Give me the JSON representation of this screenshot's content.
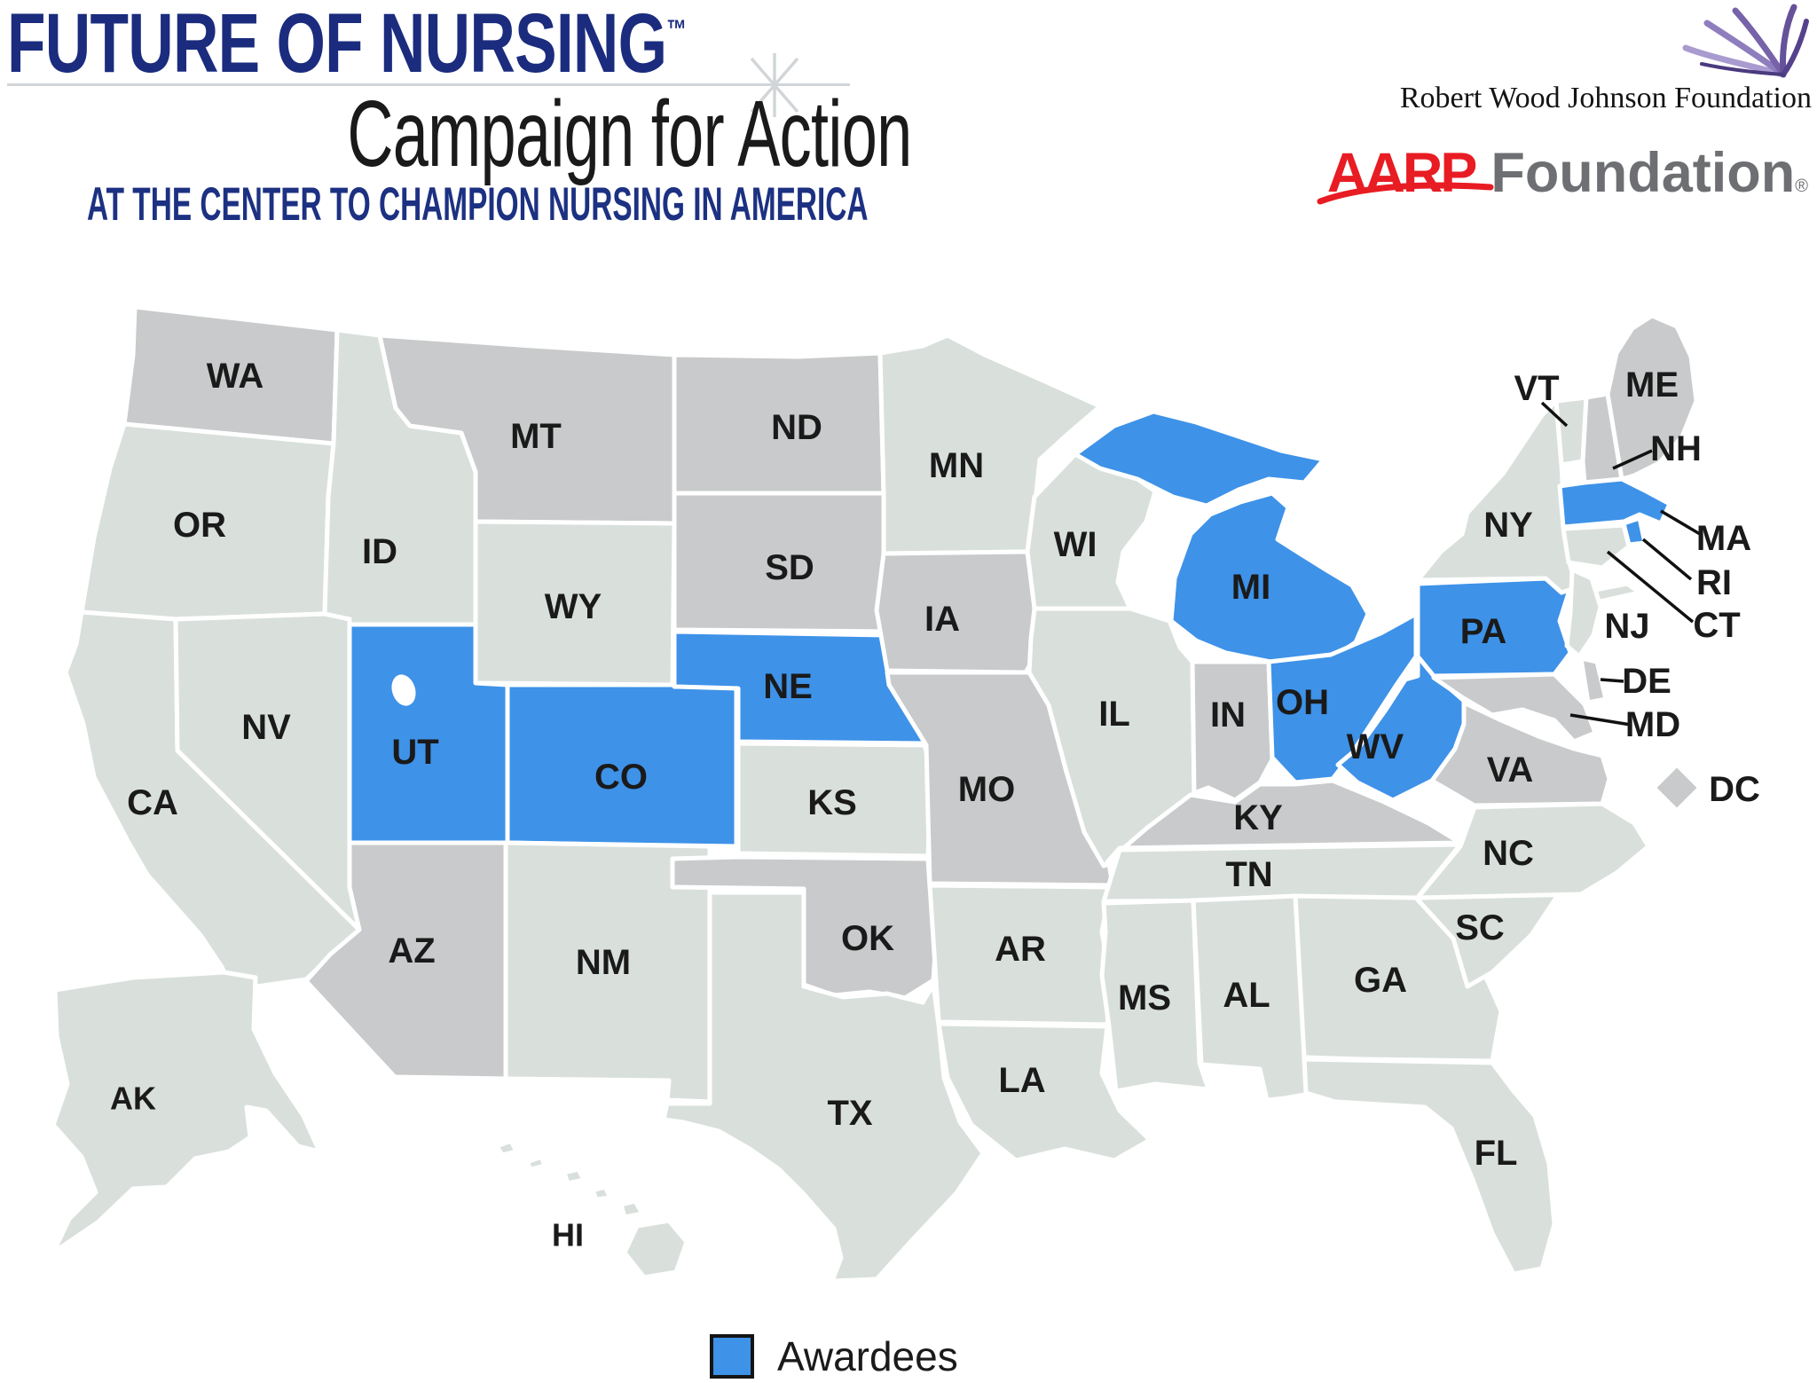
{
  "header": {
    "title": "FUTURE OF NURSING",
    "trademark": "™",
    "subtitle": "Campaign for Action",
    "tagline": "AT THE CENTER TO CHAMPION NURSING IN AMERICA"
  },
  "sponsors": {
    "rwjf_name": "Robert Wood Johnson Foundation",
    "aarp_brand": "AARP",
    "aarp_word": "Foundation",
    "aarp_reg": "®"
  },
  "legend": {
    "label": "Awardees"
  },
  "colors": {
    "awardee": "#3E92E8",
    "neutral-light": "#D9E0DC",
    "neutral-dark": "#C8CACB",
    "border": "#FFFFFF",
    "label": "#1A1A1A",
    "navy": "#1B2C7E",
    "tagline-blue": "#1C3182",
    "rule-gray": "#D2D5D8",
    "aarp-red": "#E81C23",
    "aarp-gray": "#6E6F72",
    "rwjf-purple": "#6B5AA0"
  },
  "map": {
    "awardees": [
      "UT",
      "CO",
      "NE",
      "MI",
      "OH",
      "PA",
      "WV",
      "MA",
      "RI"
    ],
    "states": [
      {
        "abbr": "WA",
        "status": "neutral-dark"
      },
      {
        "abbr": "OR",
        "status": "neutral-light"
      },
      {
        "abbr": "CA",
        "status": "neutral-light"
      },
      {
        "abbr": "NV",
        "status": "neutral-light"
      },
      {
        "abbr": "ID",
        "status": "neutral-light"
      },
      {
        "abbr": "MT",
        "status": "neutral-dark"
      },
      {
        "abbr": "WY",
        "status": "neutral-light"
      },
      {
        "abbr": "UT",
        "status": "awardee"
      },
      {
        "abbr": "CO",
        "status": "awardee"
      },
      {
        "abbr": "AZ",
        "status": "neutral-dark"
      },
      {
        "abbr": "NM",
        "status": "neutral-light"
      },
      {
        "abbr": "ND",
        "status": "neutral-dark"
      },
      {
        "abbr": "SD",
        "status": "neutral-dark"
      },
      {
        "abbr": "NE",
        "status": "awardee"
      },
      {
        "abbr": "KS",
        "status": "neutral-light"
      },
      {
        "abbr": "OK",
        "status": "neutral-dark"
      },
      {
        "abbr": "TX",
        "status": "neutral-light"
      },
      {
        "abbr": "MN",
        "status": "neutral-light"
      },
      {
        "abbr": "IA",
        "status": "neutral-dark"
      },
      {
        "abbr": "MO",
        "status": "neutral-dark"
      },
      {
        "abbr": "AR",
        "status": "neutral-light"
      },
      {
        "abbr": "LA",
        "status": "neutral-light"
      },
      {
        "abbr": "WI",
        "status": "neutral-light"
      },
      {
        "abbr": "MI",
        "status": "awardee"
      },
      {
        "abbr": "IL",
        "status": "neutral-light"
      },
      {
        "abbr": "IN",
        "status": "neutral-dark"
      },
      {
        "abbr": "OH",
        "status": "awardee"
      },
      {
        "abbr": "KY",
        "status": "neutral-dark"
      },
      {
        "abbr": "TN",
        "status": "neutral-light"
      },
      {
        "abbr": "MS",
        "status": "neutral-light"
      },
      {
        "abbr": "AL",
        "status": "neutral-light"
      },
      {
        "abbr": "GA",
        "status": "neutral-light"
      },
      {
        "abbr": "FL",
        "status": "neutral-light"
      },
      {
        "abbr": "SC",
        "status": "neutral-light"
      },
      {
        "abbr": "NC",
        "status": "neutral-light"
      },
      {
        "abbr": "VA",
        "status": "neutral-dark"
      },
      {
        "abbr": "WV",
        "status": "awardee"
      },
      {
        "abbr": "PA",
        "status": "awardee"
      },
      {
        "abbr": "NY",
        "status": "neutral-light"
      },
      {
        "abbr": "NJ",
        "status": "neutral-light"
      },
      {
        "abbr": "DE",
        "status": "neutral-dark"
      },
      {
        "abbr": "MD",
        "status": "neutral-dark"
      },
      {
        "abbr": "DC",
        "status": "neutral-dark"
      },
      {
        "abbr": "VT",
        "status": "neutral-light"
      },
      {
        "abbr": "NH",
        "status": "neutral-dark"
      },
      {
        "abbr": "ME",
        "status": "neutral-dark"
      },
      {
        "abbr": "MA",
        "status": "awardee"
      },
      {
        "abbr": "RI",
        "status": "awardee"
      },
      {
        "abbr": "CT",
        "status": "neutral-light"
      },
      {
        "abbr": "AK",
        "status": "neutral-light"
      },
      {
        "abbr": "HI",
        "status": "neutral-light"
      }
    ]
  }
}
